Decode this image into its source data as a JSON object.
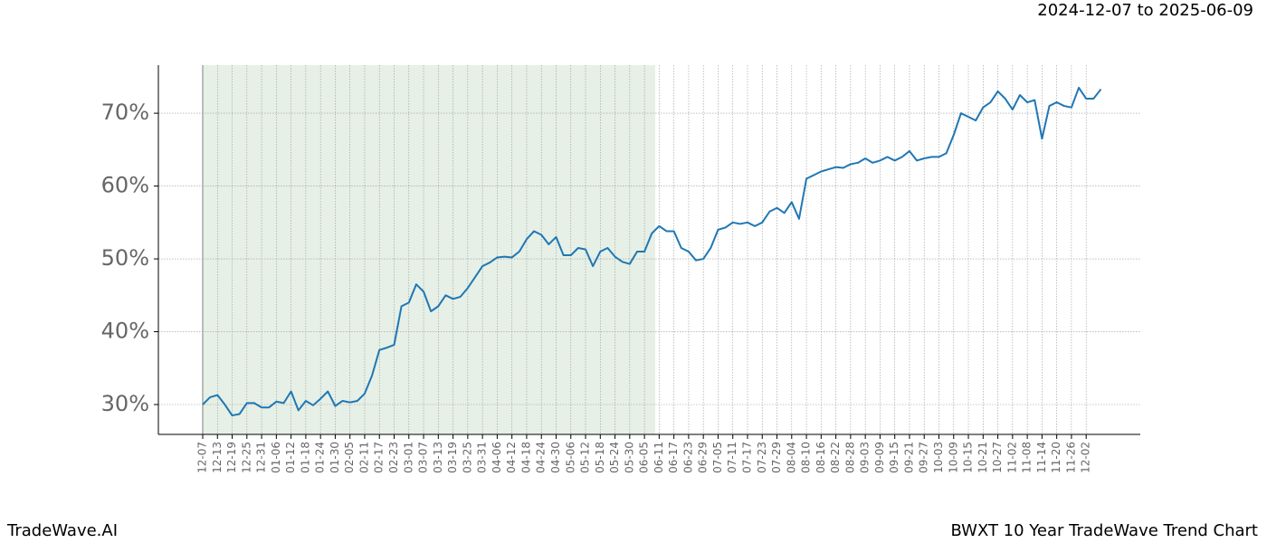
{
  "chart_data": {
    "type": "line",
    "title": "2024-12-07 to 2025-06-09",
    "footer_left": "TradeWave.AI",
    "footer_right": "BWXT 10 Year TradeWave Trend Chart",
    "categories": [
      "12-07",
      null,
      "12-13",
      null,
      "12-19",
      null,
      "12-25",
      null,
      "12-31",
      null,
      "01-06",
      null,
      "01-12",
      null,
      "01-18",
      null,
      "01-24",
      null,
      "01-30",
      null,
      "02-05",
      null,
      "02-11",
      null,
      "02-17",
      null,
      "02-23",
      null,
      "03-01",
      null,
      "03-07",
      null,
      "03-13",
      null,
      "03-19",
      null,
      "03-25",
      null,
      "03-31",
      null,
      "04-06",
      null,
      "04-12",
      null,
      "04-18",
      null,
      "04-24",
      null,
      "04-30",
      null,
      "05-06",
      null,
      "05-12",
      null,
      "05-18",
      null,
      "05-24",
      null,
      "05-30",
      null,
      "06-05",
      null,
      "06-11",
      null,
      "06-17",
      null,
      "06-23",
      null,
      "06-29",
      null,
      "07-05",
      null,
      "07-11",
      null,
      "07-17",
      null,
      "07-23",
      null,
      "07-29",
      null,
      "08-04",
      null,
      "08-10",
      null,
      "08-16",
      null,
      "08-22",
      null,
      "08-28",
      null,
      "09-03",
      null,
      "09-09",
      null,
      "09-15",
      null,
      "09-21",
      null,
      "09-27",
      null,
      "10-03",
      null,
      "10-09",
      null,
      "10-15",
      null,
      "10-21",
      null,
      "10-27",
      null,
      "11-02",
      null,
      "11-08",
      null,
      "11-14",
      null,
      "11-20",
      null,
      "11-26",
      null,
      "12-02",
      null,
      null
    ],
    "series": [
      {
        "color": "#1f77b4",
        "values": [
          30,
          31,
          31.3,
          30,
          28.5,
          28.7,
          30.2,
          30.2,
          29.6,
          29.6,
          30.4,
          30.2,
          31.8,
          29.2,
          30.5,
          29.9,
          30.8,
          31.8,
          29.8,
          30.5,
          30.3,
          30.5,
          31.5,
          34,
          37.5,
          37.8,
          38.2,
          43.5,
          44,
          46.5,
          45.5,
          42.8,
          43.5,
          45,
          44.5,
          44.8,
          46,
          47.5,
          49,
          49.5,
          50.2,
          50.3,
          50.2,
          51,
          52.7,
          53.8,
          53.3,
          52,
          53,
          50.5,
          50.5,
          51.5,
          51.3,
          49,
          51,
          51.5,
          50.3,
          49.6,
          49.3,
          51,
          51,
          53.5,
          54.5,
          53.8,
          53.8,
          51.5,
          51,
          49.8,
          50,
          51.5,
          54,
          54.3,
          55,
          54.8,
          55,
          54.5,
          55,
          56.5,
          57,
          56.3,
          57.8,
          55.5,
          61,
          61.5,
          62,
          62.3,
          62.6,
          62.5,
          63,
          63.2,
          63.8,
          63.2,
          63.5,
          64,
          63.5,
          64,
          64.8,
          63.5,
          63.8,
          64,
          64,
          64.5,
          67,
          70,
          69.5,
          69,
          70.8,
          71.5,
          73,
          72,
          70.5,
          72.5,
          71.5,
          71.8,
          66.5,
          71,
          71.5,
          71,
          70.8,
          73.5,
          72,
          72,
          73.3
        ]
      }
    ],
    "ylim": [
      25.9,
      76.6
    ],
    "yticks": [
      {
        "value": 30,
        "label": "30%"
      },
      {
        "value": 40,
        "label": "40%"
      },
      {
        "value": 50,
        "label": "50%"
      },
      {
        "value": 60,
        "label": "60%"
      },
      {
        "value": 70,
        "label": "70%"
      }
    ],
    "grid": true
  }
}
